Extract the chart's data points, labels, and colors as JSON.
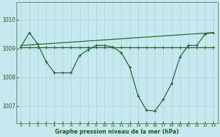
{
  "xlabel": "Graphe pression niveau de la mer (hPa)",
  "background_color": "#c6e8ef",
  "grid_color": "#a8d4dc",
  "line_color": "#1a5c1a",
  "marker_color": "#1a5c1a",
  "ylim": [
    1006.4,
    1010.6
  ],
  "yticks": [
    1007,
    1008,
    1009,
    1010
  ],
  "xticks": [
    0,
    1,
    2,
    3,
    4,
    5,
    6,
    7,
    8,
    9,
    10,
    11,
    12,
    13,
    14,
    15,
    16,
    17,
    18,
    19,
    20,
    21,
    22,
    23
  ],
  "series1_x": [
    0,
    1,
    2,
    3,
    4,
    5,
    6,
    7,
    8,
    9,
    10,
    11,
    12,
    13,
    14,
    15,
    16,
    17,
    18,
    19,
    20,
    21,
    22,
    23
  ],
  "series1_y": [
    1009.05,
    1009.05,
    1009.05,
    1009.05,
    1009.05,
    1009.05,
    1009.05,
    1009.05,
    1009.05,
    1009.05,
    1009.05,
    1009.05,
    1009.05,
    1009.05,
    1009.05,
    1009.05,
    1009.05,
    1009.05,
    1009.05,
    1009.05,
    1009.05,
    1009.05,
    1009.05,
    1009.05
  ],
  "series2_x": [
    0,
    1,
    2,
    3,
    4,
    5,
    6,
    7,
    8,
    9,
    10,
    11,
    12,
    13,
    14,
    15,
    16,
    17,
    18,
    19,
    20,
    21,
    22,
    23
  ],
  "series2_y": [
    1009.05,
    1009.55,
    1009.15,
    1008.55,
    1008.15,
    1008.15,
    1008.15,
    1008.75,
    1008.95,
    1009.1,
    1009.1,
    1009.05,
    1008.85,
    1008.35,
    1007.35,
    1006.85,
    1006.82,
    1007.22,
    1007.78,
    1008.7,
    1009.1,
    1009.1,
    1009.5,
    1009.55
  ],
  "series3_x": [
    0,
    23
  ],
  "series3_y": [
    1009.1,
    1009.55
  ]
}
